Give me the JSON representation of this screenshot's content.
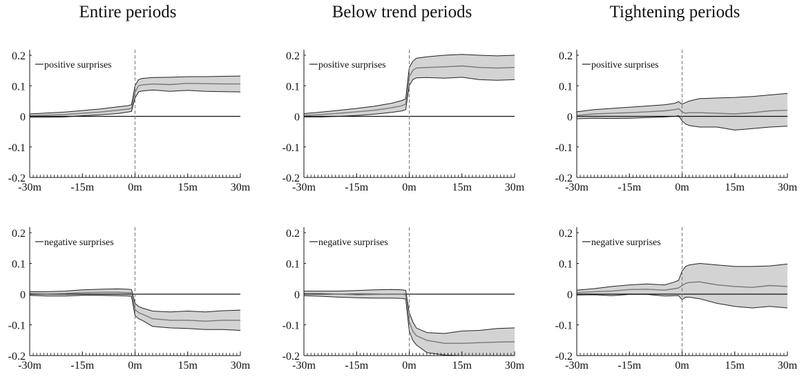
{
  "column_titles": [
    "Entire periods",
    "Below trend periods",
    "Tightening periods"
  ],
  "chart_data": [
    {
      "type": "line",
      "title": "Entire periods",
      "legend": "positive surprises",
      "legend_placement": "top-left",
      "xlim": [
        -30,
        30
      ],
      "ylim": [
        -0.2,
        0.2
      ],
      "xticks": [
        "-30m",
        "-15m",
        "0m",
        "15m",
        "30m"
      ],
      "yticks": [
        "0.2",
        "0.1",
        "0",
        "-0.1",
        "-0.2"
      ],
      "event_marker_x": 0,
      "x": [
        -30,
        -25,
        -20,
        -15,
        -10,
        -5,
        -2,
        -1,
        0,
        1,
        2,
        5,
        10,
        15,
        20,
        25,
        30
      ],
      "series": [
        {
          "role": "estimate",
          "values": [
            0.002,
            0.004,
            0.006,
            0.01,
            0.014,
            0.02,
            0.024,
            0.026,
            0.08,
            0.1,
            0.103,
            0.106,
            0.104,
            0.108,
            0.107,
            0.106,
            0.106
          ]
        },
        {
          "role": "upper_band",
          "values": [
            0.008,
            0.011,
            0.014,
            0.019,
            0.024,
            0.031,
            0.035,
            0.038,
            0.1,
            0.12,
            0.124,
            0.127,
            0.128,
            0.13,
            0.13,
            0.131,
            0.132
          ]
        },
        {
          "role": "lower_band",
          "values": [
            -0.003,
            -0.003,
            -0.002,
            0.002,
            0.005,
            0.009,
            0.014,
            0.016,
            0.06,
            0.08,
            0.083,
            0.086,
            0.082,
            0.085,
            0.082,
            0.081,
            0.08
          ]
        }
      ]
    },
    {
      "type": "line",
      "title": "Below trend periods",
      "legend": "positive surprises",
      "legend_placement": "top-left",
      "xlim": [
        -30,
        30
      ],
      "ylim": [
        -0.2,
        0.2
      ],
      "xticks": [
        "-30m",
        "-15m",
        "0m",
        "15m",
        "30m"
      ],
      "yticks": [
        "0.2",
        "0.1",
        "0",
        "-0.1",
        "-0.2"
      ],
      "event_marker_x": 0,
      "x": [
        -30,
        -25,
        -20,
        -15,
        -10,
        -5,
        -2,
        -1,
        0,
        1,
        2,
        5,
        10,
        15,
        20,
        25,
        30
      ],
      "series": [
        {
          "role": "estimate",
          "values": [
            0.003,
            0.006,
            0.01,
            0.015,
            0.02,
            0.028,
            0.035,
            0.04,
            0.13,
            0.15,
            0.158,
            0.16,
            0.162,
            0.165,
            0.16,
            0.158,
            0.16
          ]
        },
        {
          "role": "upper_band",
          "values": [
            0.009,
            0.014,
            0.02,
            0.026,
            0.033,
            0.043,
            0.052,
            0.058,
            0.16,
            0.18,
            0.19,
            0.195,
            0.2,
            0.203,
            0.2,
            0.198,
            0.2
          ]
        },
        {
          "role": "lower_band",
          "values": [
            -0.002,
            -0.002,
            0.0,
            0.003,
            0.007,
            0.013,
            0.018,
            0.022,
            0.1,
            0.12,
            0.126,
            0.127,
            0.125,
            0.128,
            0.12,
            0.118,
            0.12
          ]
        }
      ]
    },
    {
      "type": "line",
      "title": "Tightening periods",
      "legend": "positive surprises",
      "legend_placement": "top-left",
      "xlim": [
        -30,
        30
      ],
      "ylim": [
        -0.2,
        0.2
      ],
      "xticks": [
        "-30m",
        "-15m",
        "0m",
        "15m",
        "30m"
      ],
      "yticks": [
        "0.2",
        "0.1",
        "0",
        "-0.1",
        "-0.2"
      ],
      "event_marker_x": 0,
      "x": [
        -30,
        -25,
        -20,
        -15,
        -10,
        -5,
        -2,
        -1,
        0,
        1,
        2,
        5,
        10,
        15,
        20,
        25,
        30
      ],
      "series": [
        {
          "role": "estimate",
          "values": [
            0.003,
            0.008,
            0.01,
            0.012,
            0.015,
            0.018,
            0.022,
            0.025,
            0.015,
            0.01,
            0.012,
            0.012,
            0.01,
            0.008,
            0.012,
            0.018,
            0.02
          ]
        },
        {
          "role": "upper_band",
          "values": [
            0.015,
            0.022,
            0.026,
            0.03,
            0.034,
            0.038,
            0.043,
            0.048,
            0.04,
            0.045,
            0.05,
            0.058,
            0.06,
            0.062,
            0.065,
            0.07,
            0.075
          ]
        },
        {
          "role": "lower_band",
          "values": [
            -0.008,
            -0.006,
            -0.007,
            -0.006,
            -0.004,
            -0.002,
            0.0,
            0.002,
            -0.015,
            -0.025,
            -0.03,
            -0.035,
            -0.035,
            -0.045,
            -0.04,
            -0.035,
            -0.032
          ]
        }
      ]
    },
    {
      "type": "line",
      "title": "",
      "legend": "negative surprises",
      "legend_placement": "top-left",
      "xlim": [
        -30,
        30
      ],
      "ylim": [
        -0.2,
        0.2
      ],
      "xticks": [
        "-30m",
        "-15m",
        "0m",
        "15m",
        "30m"
      ],
      "yticks": [
        "0.2",
        "0.1",
        "0",
        "-0.1",
        "-0.2"
      ],
      "event_marker_x": 0,
      "x": [
        -30,
        -25,
        -20,
        -15,
        -10,
        -5,
        -2,
        -1,
        0,
        1,
        2,
        5,
        10,
        15,
        20,
        25,
        30
      ],
      "series": [
        {
          "role": "estimate",
          "values": [
            0.002,
            0.001,
            0.002,
            0.005,
            0.006,
            0.006,
            0.005,
            0.004,
            -0.05,
            -0.06,
            -0.065,
            -0.08,
            -0.085,
            -0.085,
            -0.088,
            -0.085,
            -0.085
          ]
        },
        {
          "role": "upper_band",
          "values": [
            0.008,
            0.008,
            0.01,
            0.014,
            0.016,
            0.017,
            0.016,
            0.015,
            -0.03,
            -0.04,
            -0.045,
            -0.055,
            -0.058,
            -0.055,
            -0.058,
            -0.054,
            -0.052
          ]
        },
        {
          "role": "lower_band",
          "values": [
            -0.004,
            -0.006,
            -0.006,
            -0.004,
            -0.004,
            -0.005,
            -0.006,
            -0.007,
            -0.07,
            -0.08,
            -0.085,
            -0.105,
            -0.11,
            -0.112,
            -0.115,
            -0.115,
            -0.118
          ]
        }
      ]
    },
    {
      "type": "line",
      "title": "",
      "legend": "negative surprises",
      "legend_placement": "top-left",
      "xlim": [
        -30,
        30
      ],
      "ylim": [
        -0.2,
        0.2
      ],
      "xticks": [
        "-30m",
        "-15m",
        "0m",
        "15m",
        "30m"
      ],
      "yticks": [
        "0.2",
        "0.1",
        "0",
        "-0.1",
        "-0.2"
      ],
      "event_marker_x": 0,
      "x": [
        -30,
        -25,
        -20,
        -15,
        -10,
        -5,
        -2,
        -1,
        0,
        1,
        2,
        5,
        10,
        15,
        20,
        25,
        30
      ],
      "series": [
        {
          "role": "estimate",
          "values": [
            0.002,
            0.002,
            0.0,
            -0.002,
            -0.001,
            0.0,
            0.0,
            -0.002,
            -0.09,
            -0.12,
            -0.135,
            -0.15,
            -0.16,
            -0.16,
            -0.158,
            -0.156,
            -0.155
          ]
        },
        {
          "role": "upper_band",
          "values": [
            0.01,
            0.01,
            0.01,
            0.012,
            0.014,
            0.015,
            0.014,
            0.012,
            -0.06,
            -0.09,
            -0.11,
            -0.125,
            -0.128,
            -0.12,
            -0.118,
            -0.112,
            -0.11
          ]
        },
        {
          "role": "lower_band",
          "values": [
            -0.005,
            -0.007,
            -0.01,
            -0.012,
            -0.013,
            -0.013,
            -0.014,
            -0.016,
            -0.12,
            -0.15,
            -0.165,
            -0.19,
            -0.198,
            -0.2,
            -0.2,
            -0.2,
            -0.2
          ]
        }
      ]
    },
    {
      "type": "line",
      "title": "",
      "legend": "negative surprises",
      "legend_placement": "top-left",
      "xlim": [
        -30,
        30
      ],
      "ylim": [
        -0.2,
        0.2
      ],
      "xticks": [
        "-30m",
        "-15m",
        "0m",
        "15m",
        "30m"
      ],
      "yticks": [
        "0.2",
        "0.1",
        "0",
        "-0.1",
        "-0.2"
      ],
      "event_marker_x": 0,
      "x": [
        -30,
        -25,
        -20,
        -15,
        -10,
        -5,
        -2,
        -1,
        0,
        1,
        2,
        5,
        10,
        15,
        20,
        25,
        30
      ],
      "series": [
        {
          "role": "estimate",
          "values": [
            0.005,
            0.008,
            0.01,
            0.015,
            0.016,
            0.013,
            0.018,
            0.02,
            0.028,
            0.035,
            0.038,
            0.04,
            0.03,
            0.025,
            0.022,
            0.028,
            0.025
          ]
        },
        {
          "role": "upper_band",
          "values": [
            0.013,
            0.018,
            0.025,
            0.03,
            0.033,
            0.03,
            0.04,
            0.045,
            0.075,
            0.09,
            0.095,
            0.1,
            0.095,
            0.09,
            0.09,
            0.092,
            0.098
          ]
        },
        {
          "role": "lower_band",
          "values": [
            -0.003,
            -0.002,
            -0.005,
            -0.001,
            -0.001,
            -0.006,
            -0.005,
            -0.005,
            -0.018,
            -0.01,
            -0.01,
            -0.015,
            -0.03,
            -0.04,
            -0.045,
            -0.04,
            -0.045
          ]
        }
      ]
    }
  ]
}
